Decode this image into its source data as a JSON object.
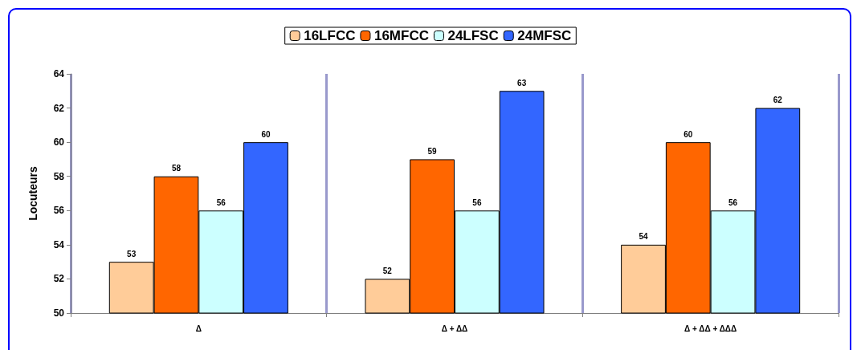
{
  "chart_data": {
    "type": "bar",
    "ylabel": "Locuteurs",
    "categories": [
      "Δ",
      "Δ + ΔΔ",
      "Δ + ΔΔ + ΔΔΔ"
    ],
    "series": [
      {
        "name": "16LFCC",
        "color": "#ffcc99",
        "values": [
          53,
          52,
          54
        ]
      },
      {
        "name": "16MFCC",
        "color": "#ff6600",
        "values": [
          58,
          59,
          60
        ]
      },
      {
        "name": "24LFSC",
        "color": "#ccffff",
        "values": [
          56,
          56,
          56
        ]
      },
      {
        "name": "24MFSC",
        "color": "#3366ff",
        "values": [
          60,
          63,
          62
        ]
      }
    ],
    "ylim": [
      50,
      64
    ],
    "yticks": [
      50,
      52,
      54,
      56,
      58,
      60,
      62,
      64
    ],
    "grid": "x",
    "legend": "top",
    "data_labels": true
  }
}
